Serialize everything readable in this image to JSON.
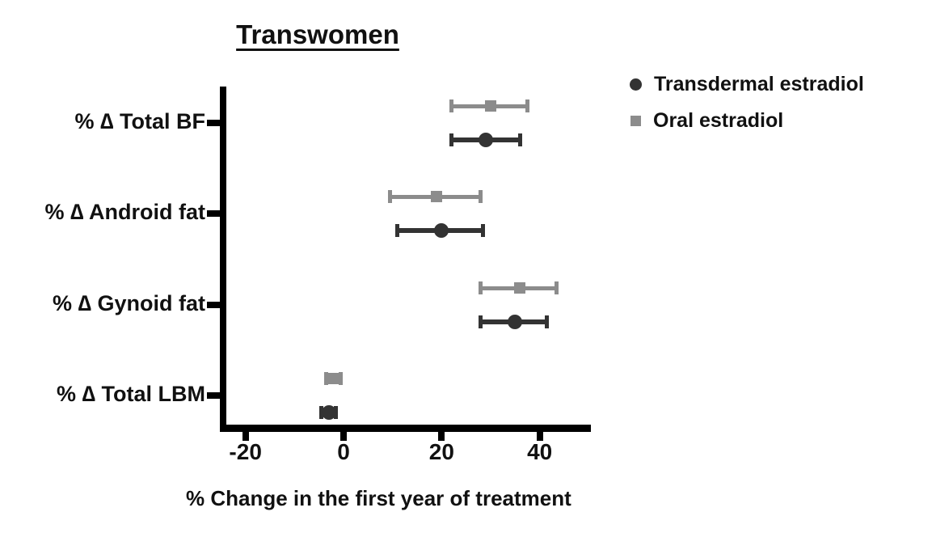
{
  "title": "Transwomen",
  "xlabel": "% Change in the first year of treatment",
  "legend": {
    "items": [
      {
        "label": "Transdermal estradiol",
        "marker": "circle",
        "color": "#333333"
      },
      {
        "label": "Oral estradiol",
        "marker": "square",
        "color": "#8c8c8c"
      }
    ]
  },
  "colors": {
    "axis": "#000000",
    "text": "#111111",
    "transdermal": "#333333",
    "oral": "#8c8c8c"
  },
  "chart_data": {
    "type": "scatter",
    "subtype": "horizontal-dot-plot-with-error-bars",
    "title": "Transwomen",
    "xlabel": "% Change in the first year of treatment",
    "categories": [
      "% ∆ Total BF",
      "% ∆ Android fat",
      "% ∆ Gynoid fat",
      "% ∆ Total LBM"
    ],
    "series": [
      {
        "name": "Oral estradiol",
        "marker": "square",
        "color": "#8c8c8c",
        "row_offset": "above",
        "values": [
          30,
          19,
          36,
          -2
        ],
        "ci_low": [
          22,
          9.5,
          28,
          -3.5
        ],
        "ci_high": [
          37.5,
          28,
          43.5,
          -0.5
        ]
      },
      {
        "name": "Transdermal estradiol",
        "marker": "circle",
        "color": "#333333",
        "row_offset": "below",
        "values": [
          29,
          20,
          35,
          -3
        ],
        "ci_low": [
          22,
          11,
          28,
          -4.5
        ],
        "ci_high": [
          36,
          28.5,
          41.5,
          -1.5
        ]
      }
    ],
    "x_ticks": [
      -20,
      0,
      20,
      40
    ],
    "xlim": [
      -25.2,
      50.4
    ],
    "grid": false,
    "legend_position": "top-right"
  }
}
